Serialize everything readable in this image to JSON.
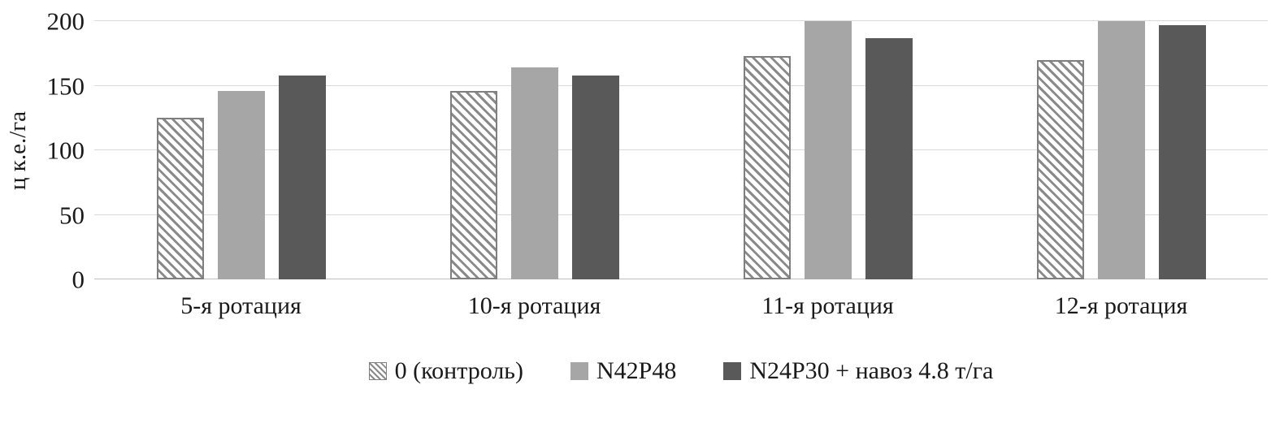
{
  "chart_data": {
    "type": "bar",
    "title": "",
    "xlabel": "",
    "ylabel": "ц к.е./га",
    "ylim": [
      0,
      200
    ],
    "yticks": [
      0,
      50,
      100,
      150,
      200
    ],
    "grid": "horizontal",
    "legend_position": "bottom",
    "categories": [
      "5-я ротация",
      "10-я ротация",
      "11-я ротация",
      "12-я ротация"
    ],
    "series": [
      {
        "name": "0 (контроль)",
        "pattern": "hatch",
        "fill": "#ffffff",
        "hatch_color": "#8a8a8a",
        "border_color": "#7f7f7f",
        "values": [
          125,
          146,
          173,
          170
        ]
      },
      {
        "name": "N42P48",
        "pattern": "solid",
        "fill": "#a6a6a6",
        "values": [
          146,
          164,
          200,
          200
        ]
      },
      {
        "name": "N24P30 + навоз 4.8 т/га",
        "pattern": "solid",
        "fill": "#595959",
        "values": [
          158,
          158,
          187,
          197
        ]
      }
    ],
    "colors": {
      "gridline": "#d9d9d9",
      "axis": "#bfbfbf",
      "text": "#1a1a1a",
      "background": "#ffffff"
    }
  }
}
